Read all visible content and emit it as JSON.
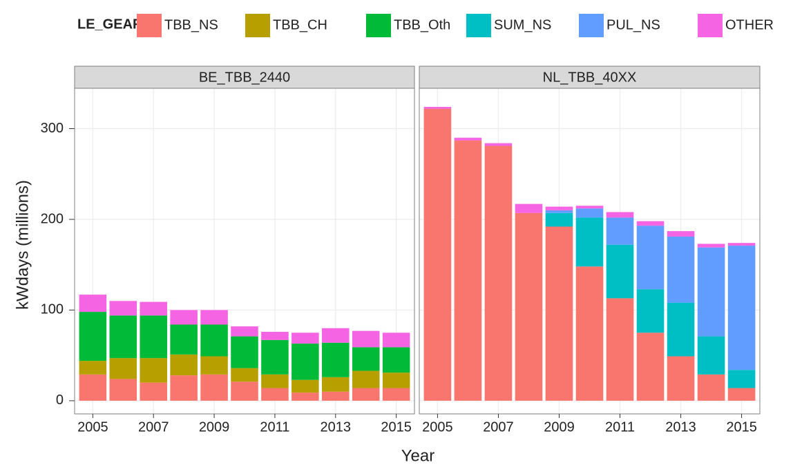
{
  "chart_data": {
    "type": "bar",
    "stacked": true,
    "grid": true,
    "legend_title": "LE_GEAR",
    "legend_position": "top",
    "xlabel": "Year",
    "ylabel": "kWdays (millions)",
    "facets": [
      "BE_TBB_2440",
      "NL_TBB_40XX"
    ],
    "x": [
      2005,
      2006,
      2007,
      2008,
      2009,
      2010,
      2011,
      2012,
      2013,
      2014,
      2015
    ],
    "xlim": [
      2004.4,
      2015.6
    ],
    "xticks": [
      2005,
      2007,
      2009,
      2011,
      2013,
      2015
    ],
    "ylim": [
      -14.5,
      344.5
    ],
    "yticks": [
      0,
      100,
      200,
      300
    ],
    "series": [
      {
        "name": "TBB_NS",
        "color": "#F8766D",
        "values": [
          [
            29,
            24,
            20,
            28,
            29,
            21,
            14,
            9,
            10,
            14,
            14
          ],
          [
            322,
            287,
            281,
            207,
            192,
            148,
            113,
            75,
            49,
            29,
            14
          ]
        ]
      },
      {
        "name": "TBB_CH",
        "color": "#B79F00",
        "values": [
          [
            15,
            23,
            27,
            23,
            20,
            15,
            15,
            14,
            16,
            19,
            17
          ],
          [
            0,
            0,
            0,
            0,
            0,
            0,
            0,
            0,
            0,
            0,
            0
          ]
        ]
      },
      {
        "name": "TBB_Oth",
        "color": "#00BA38",
        "values": [
          [
            54,
            47,
            47,
            33,
            35,
            35,
            38,
            40,
            38,
            26,
            28
          ],
          [
            0,
            0,
            0,
            0,
            0,
            0,
            0,
            0,
            0,
            0,
            0
          ]
        ]
      },
      {
        "name": "SUM_NS",
        "color": "#00BFC4",
        "values": [
          [
            0,
            0,
            0,
            0,
            0,
            0,
            0,
            0,
            0,
            0,
            0
          ],
          [
            0,
            0,
            0,
            0,
            15,
            54,
            59,
            48,
            59,
            42,
            20
          ]
        ]
      },
      {
        "name": "PUL_NS",
        "color": "#619CFF",
        "values": [
          [
            0,
            0,
            0,
            0,
            0,
            0,
            0,
            0,
            0,
            0,
            0
          ],
          [
            0,
            0,
            0,
            0,
            3,
            10,
            30,
            70,
            73,
            98,
            137
          ]
        ]
      },
      {
        "name": "OTHER",
        "color": "#F564E3",
        "values": [
          [
            19,
            16,
            15,
            16,
            16,
            11,
            9,
            12,
            16,
            18,
            16
          ],
          [
            2,
            3,
            3,
            10,
            4,
            3,
            6,
            5,
            6,
            4,
            3
          ]
        ]
      }
    ]
  }
}
